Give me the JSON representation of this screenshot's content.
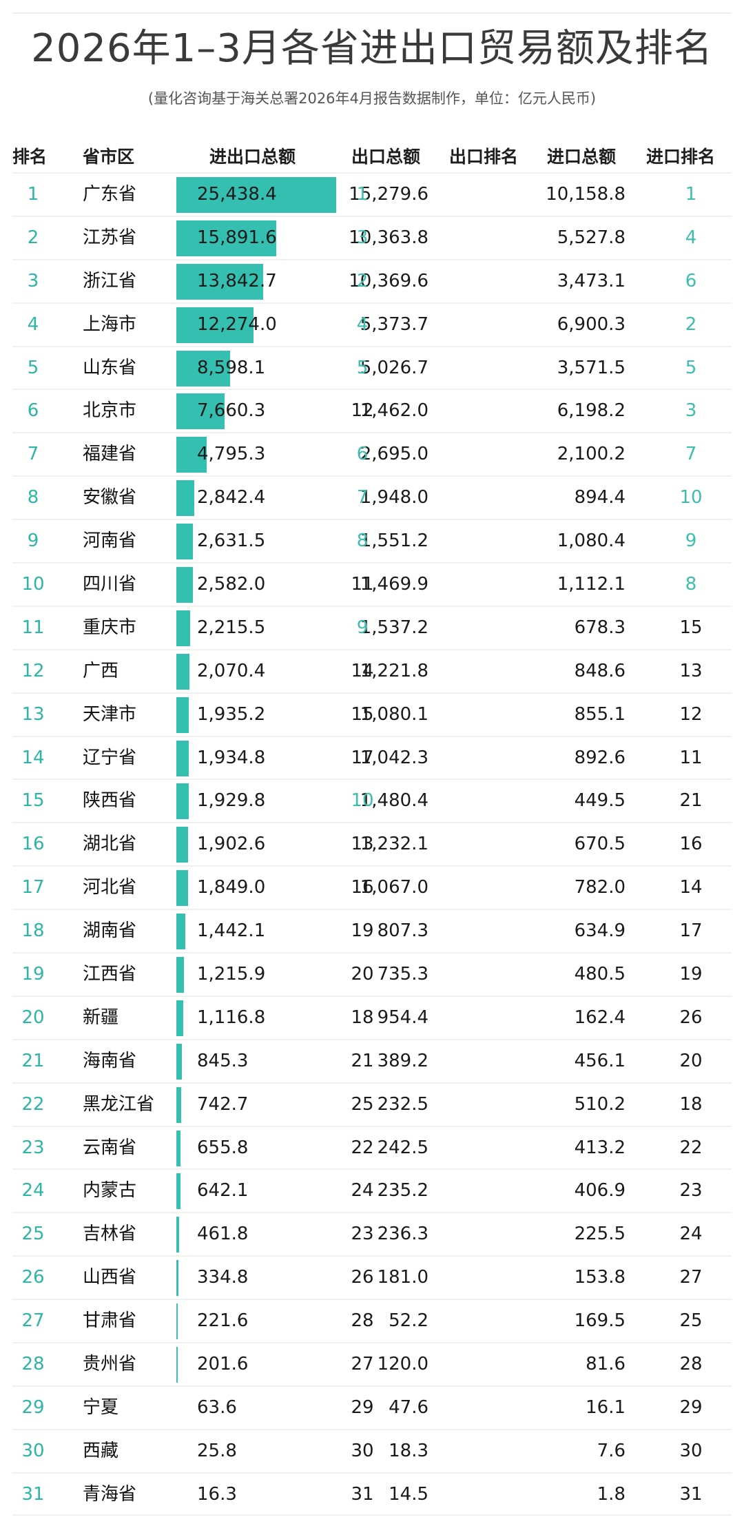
{
  "title": "2026年1–3月各省进出口贸易额及排名",
  "subtitle": "(量化咨询基于海关总署2026年4月报告数据制作，单位：亿元人民币)",
  "header": {
    "rank": "排名",
    "province": "省市区",
    "total": "进出口总额",
    "export": "出口总额",
    "export_rank": "出口排名",
    "import": "进口总额",
    "import_rank": "进口排名"
  },
  "colors": {
    "accent": "#35bfb0",
    "rank_text": "#3dbdad",
    "text": "#1a1a1a"
  },
  "rows": [
    {
      "rank": "1",
      "province": "广东省",
      "total": "25,438.4",
      "export": "15,279.6",
      "export_rank": "1",
      "import": "10,158.8",
      "import_rank": "1"
    },
    {
      "rank": "2",
      "province": "江苏省",
      "total": "15,891.6",
      "export": "10,363.8",
      "export_rank": "3",
      "import": "5,527.8",
      "import_rank": "4"
    },
    {
      "rank": "3",
      "province": "浙江省",
      "total": "13,842.7",
      "export": "10,369.6",
      "export_rank": "2",
      "import": "3,473.1",
      "import_rank": "6"
    },
    {
      "rank": "4",
      "province": "上海市",
      "total": "12,274.0",
      "export": "5,373.7",
      "export_rank": "4",
      "import": "6,900.3",
      "import_rank": "2"
    },
    {
      "rank": "5",
      "province": "山东省",
      "total": "8,598.1",
      "export": "5,026.7",
      "export_rank": "5",
      "import": "3,571.5",
      "import_rank": "5"
    },
    {
      "rank": "6",
      "province": "北京市",
      "total": "7,660.3",
      "export": "1,462.0",
      "export_rank": "12",
      "import": "6,198.2",
      "import_rank": "3"
    },
    {
      "rank": "7",
      "province": "福建省",
      "total": "4,795.3",
      "export": "2,695.0",
      "export_rank": "6",
      "import": "2,100.2",
      "import_rank": "7"
    },
    {
      "rank": "8",
      "province": "安徽省",
      "total": "2,842.4",
      "export": "1,948.0",
      "export_rank": "7",
      "import": "894.4",
      "import_rank": "10"
    },
    {
      "rank": "9",
      "province": "河南省",
      "total": "2,631.5",
      "export": "1,551.2",
      "export_rank": "8",
      "import": "1,080.4",
      "import_rank": "9"
    },
    {
      "rank": "10",
      "province": "四川省",
      "total": "2,582.0",
      "export": "1,469.9",
      "export_rank": "11",
      "import": "1,112.1",
      "import_rank": "8"
    },
    {
      "rank": "11",
      "province": "重庆市",
      "total": "2,215.5",
      "export": "1,537.2",
      "export_rank": "9",
      "import": "678.3",
      "import_rank": "15"
    },
    {
      "rank": "12",
      "province": "广西",
      "total": "2,070.4",
      "export": "1,221.8",
      "export_rank": "14",
      "import": "848.6",
      "import_rank": "13"
    },
    {
      "rank": "13",
      "province": "天津市",
      "total": "1,935.2",
      "export": "1,080.1",
      "export_rank": "15",
      "import": "855.1",
      "import_rank": "12"
    },
    {
      "rank": "14",
      "province": "辽宁省",
      "total": "1,934.8",
      "export": "1,042.3",
      "export_rank": "17",
      "import": "892.6",
      "import_rank": "11"
    },
    {
      "rank": "15",
      "province": "陕西省",
      "total": "1,929.8",
      "export": "1,480.4",
      "export_rank": "10",
      "import": "449.5",
      "import_rank": "21"
    },
    {
      "rank": "16",
      "province": "湖北省",
      "total": "1,902.6",
      "export": "1,232.1",
      "export_rank": "13",
      "import": "670.5",
      "import_rank": "16"
    },
    {
      "rank": "17",
      "province": "河北省",
      "total": "1,849.0",
      "export": "1,067.0",
      "export_rank": "16",
      "import": "782.0",
      "import_rank": "14"
    },
    {
      "rank": "18",
      "province": "湖南省",
      "total": "1,442.1",
      "export": "807.3",
      "export_rank": "19",
      "import": "634.9",
      "import_rank": "17"
    },
    {
      "rank": "19",
      "province": "江西省",
      "total": "1,215.9",
      "export": "735.3",
      "export_rank": "20",
      "import": "480.5",
      "import_rank": "19"
    },
    {
      "rank": "20",
      "province": "新疆",
      "total": "1,116.8",
      "export": "954.4",
      "export_rank": "18",
      "import": "162.4",
      "import_rank": "26"
    },
    {
      "rank": "21",
      "province": "海南省",
      "total": "845.3",
      "export": "389.2",
      "export_rank": "21",
      "import": "456.1",
      "import_rank": "20"
    },
    {
      "rank": "22",
      "province": "黑龙江省",
      "total": "742.7",
      "export": "232.5",
      "export_rank": "25",
      "import": "510.2",
      "import_rank": "18"
    },
    {
      "rank": "23",
      "province": "云南省",
      "total": "655.8",
      "export": "242.5",
      "export_rank": "22",
      "import": "413.2",
      "import_rank": "22"
    },
    {
      "rank": "24",
      "province": "内蒙古",
      "total": "642.1",
      "export": "235.2",
      "export_rank": "24",
      "import": "406.9",
      "import_rank": "23"
    },
    {
      "rank": "25",
      "province": "吉林省",
      "total": "461.8",
      "export": "236.3",
      "export_rank": "23",
      "import": "225.5",
      "import_rank": "24"
    },
    {
      "rank": "26",
      "province": "山西省",
      "total": "334.8",
      "export": "181.0",
      "export_rank": "26",
      "import": "153.8",
      "import_rank": "27"
    },
    {
      "rank": "27",
      "province": "甘肃省",
      "total": "221.6",
      "export": "52.2",
      "export_rank": "28",
      "import": "169.5",
      "import_rank": "25"
    },
    {
      "rank": "28",
      "province": "贵州省",
      "total": "201.6",
      "export": "120.0",
      "export_rank": "27",
      "import": "81.6",
      "import_rank": "28"
    },
    {
      "rank": "29",
      "province": "宁夏",
      "total": "63.6",
      "export": "47.6",
      "export_rank": "29",
      "import": "16.1",
      "import_rank": "29"
    },
    {
      "rank": "30",
      "province": "西藏",
      "total": "25.8",
      "export": "18.3",
      "export_rank": "30",
      "import": "7.6",
      "import_rank": "30"
    },
    {
      "rank": "31",
      "province": "青海省",
      "total": "16.3",
      "export": "14.5",
      "export_rank": "31",
      "import": "1.8",
      "import_rank": "31"
    }
  ],
  "chart_data": {
    "type": "table",
    "title": "2026年1–3月各省进出口贸易额及排名",
    "subtitle": "(量化咨询基于海关总署2026年4月报告数据制作，单位：亿元人民币)",
    "unit": "亿元人民币",
    "columns": [
      "排名",
      "省市区",
      "进出口总额",
      "出口总额",
      "出口排名",
      "进口总额",
      "进口排名"
    ],
    "embedded_bar": {
      "column": "进出口总额",
      "max": 25438.4,
      "color": "#35bfb0"
    },
    "categories": [
      "广东省",
      "江苏省",
      "浙江省",
      "上海市",
      "山东省",
      "北京市",
      "福建省",
      "安徽省",
      "河南省",
      "四川省",
      "重庆市",
      "广西",
      "天津市",
      "辽宁省",
      "陕西省",
      "湖北省",
      "河北省",
      "湖南省",
      "江西省",
      "新疆",
      "海南省",
      "黑龙江省",
      "云南省",
      "内蒙古",
      "吉林省",
      "山西省",
      "甘肃省",
      "贵州省",
      "宁夏",
      "西藏",
      "青海省"
    ],
    "series": [
      {
        "name": "进出口总额",
        "values": [
          25438.4,
          15891.6,
          13842.7,
          12274.0,
          8598.1,
          7660.3,
          4795.3,
          2842.4,
          2631.5,
          2582.0,
          2215.5,
          2070.4,
          1935.2,
          1934.8,
          1929.8,
          1902.6,
          1849.0,
          1442.1,
          1215.9,
          1116.8,
          845.3,
          742.7,
          655.8,
          642.1,
          461.8,
          334.8,
          221.6,
          201.6,
          63.6,
          25.8,
          16.3
        ]
      },
      {
        "name": "出口总额",
        "values": [
          15279.6,
          10363.8,
          10369.6,
          5373.7,
          5026.7,
          1462.0,
          2695.0,
          1948.0,
          1551.2,
          1469.9,
          1537.2,
          1221.8,
          1080.1,
          1042.3,
          1480.4,
          1232.1,
          1067.0,
          807.3,
          735.3,
          954.4,
          389.2,
          232.5,
          242.5,
          235.2,
          236.3,
          181.0,
          52.2,
          120.0,
          47.6,
          18.3,
          14.5
        ]
      },
      {
        "name": "出口排名",
        "values": [
          1,
          3,
          2,
          4,
          5,
          12,
          6,
          7,
          8,
          11,
          9,
          14,
          15,
          17,
          10,
          13,
          16,
          19,
          20,
          18,
          21,
          25,
          22,
          24,
          23,
          26,
          28,
          27,
          29,
          30,
          31
        ]
      },
      {
        "name": "进口总额",
        "values": [
          10158.8,
          5527.8,
          3473.1,
          6900.3,
          3571.5,
          6198.2,
          2100.2,
          894.4,
          1080.4,
          1112.1,
          678.3,
          848.6,
          855.1,
          892.6,
          449.5,
          670.5,
          782.0,
          634.9,
          480.5,
          162.4,
          456.1,
          510.2,
          413.2,
          406.9,
          225.5,
          153.8,
          169.5,
          81.6,
          16.1,
          7.6,
          1.8
        ]
      },
      {
        "name": "进口排名",
        "values": [
          1,
          4,
          6,
          2,
          5,
          3,
          7,
          10,
          9,
          8,
          15,
          13,
          12,
          11,
          21,
          16,
          14,
          17,
          19,
          26,
          20,
          18,
          22,
          23,
          24,
          27,
          25,
          28,
          29,
          30,
          31
        ]
      }
    ]
  }
}
